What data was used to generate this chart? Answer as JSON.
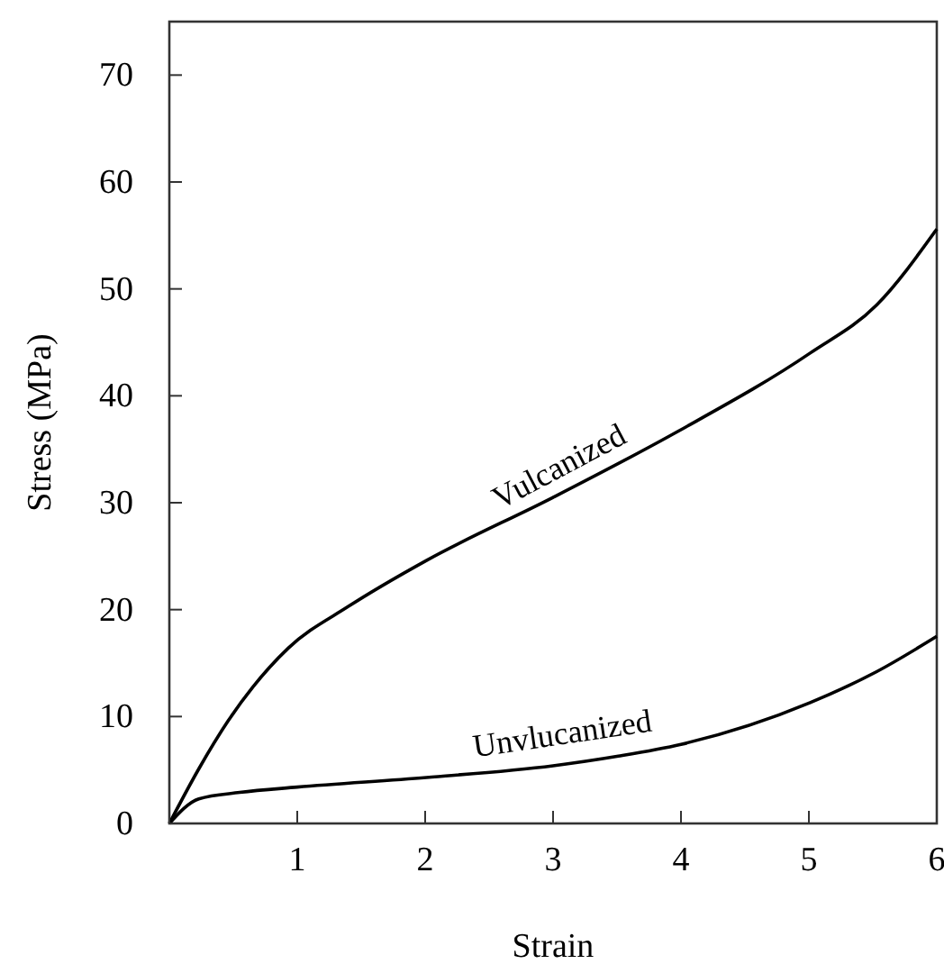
{
  "chart_data": {
    "type": "line",
    "xlabel": "Strain",
    "ylabel": "Stress (MPa)",
    "xlim": [
      0,
      6
    ],
    "ylim": [
      0,
      75
    ],
    "xticks": [
      {
        "value": 0,
        "label": null
      },
      1,
      2,
      3,
      4,
      5,
      6
    ],
    "yticks": [
      0,
      10,
      20,
      30,
      40,
      50,
      60,
      70
    ],
    "grid": false,
    "marker": "none",
    "line_style": "solid",
    "series": [
      {
        "name": "Vulcanized",
        "color": "#000000",
        "x": [
          0,
          0.23,
          0.46,
          0.93,
          1.4,
          2.01,
          3.0,
          3.98,
          5.01,
          5.53,
          6
        ],
        "values": [
          0,
          5.1,
          9.6,
          16.4,
          20.3,
          24.6,
          30.5,
          36.7,
          44,
          48.5,
          55.6
        ]
      },
      {
        "name": "Unvlucanized",
        "color": "#000000",
        "x": [
          0,
          0.23,
          0.55,
          1.0,
          2.01,
          3.0,
          3.51,
          4.0,
          5.01,
          5.53,
          6
        ],
        "values": [
          0,
          2.3,
          2.9,
          3.4,
          4.3,
          5.4,
          6.3,
          7.4,
          11.3,
          14.2,
          17.5
        ]
      }
    ]
  }
}
